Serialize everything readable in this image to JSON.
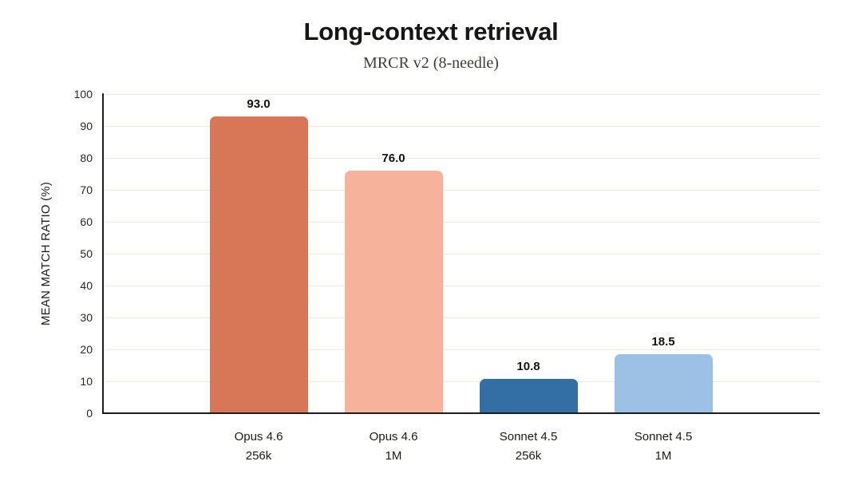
{
  "chart_data": {
    "type": "bar",
    "title": "Long-context retrieval",
    "subtitle": "MRCR v2 (8-needle)",
    "ylabel": "MEAN MATCH RATIO (%)",
    "categories": [
      [
        "Opus 4.6",
        "256k"
      ],
      [
        "Opus 4.6",
        "1M"
      ],
      [
        "Sonnet 4.5",
        "256k"
      ],
      [
        "Sonnet 4.5",
        "1M"
      ]
    ],
    "values": [
      93.0,
      76.0,
      10.8,
      18.5
    ],
    "value_labels": [
      "93.0",
      "76.0",
      "10.8",
      "18.5"
    ],
    "bar_colors": [
      "#d77757",
      "#f6b29b",
      "#336fa4",
      "#9dc1e5"
    ],
    "ylim": [
      0,
      100
    ],
    "ytick_step": 10,
    "ytick_labels": [
      "0",
      "10",
      "20",
      "30",
      "40",
      "50",
      "60",
      "70",
      "80",
      "90",
      "100"
    ],
    "grid": true,
    "grid_color": "#eceae4",
    "axis_color": "#1c1c1a",
    "legend": "none"
  }
}
